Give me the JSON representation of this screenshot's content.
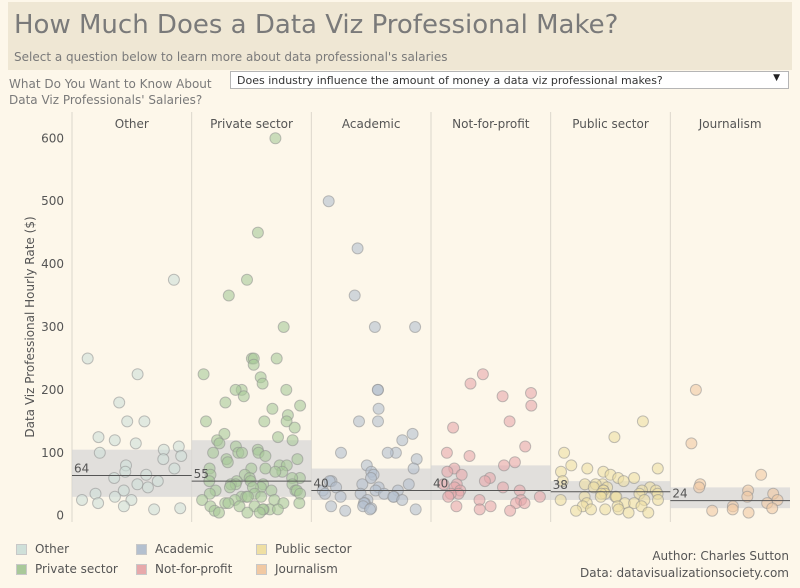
{
  "header": {
    "title": "How Much Does a Data Viz Professional Make?",
    "subtitle": "Select a question below to learn more about data professional's salaries"
  },
  "filter": {
    "label": "What Do You Want to Know About Data Viz Professionals' Salaries?",
    "selected": "Does industry influence the amount of money a data viz professional makes?"
  },
  "chart_data": {
    "type": "scatter",
    "title": "Does industry influence the amount of money a data viz professional makes?",
    "ylabel": "Data Viz Professional Hourly Rate ($)",
    "ylim": [
      -10,
      610
    ],
    "yticks": [
      0,
      100,
      200,
      300,
      400,
      500,
      600
    ],
    "categories": [
      "Other",
      "Private sector",
      "Academic",
      "Not-for-profit",
      "Public sector",
      "Journalism"
    ],
    "colors": {
      "Other": "#cfe0d9",
      "Private sector": "#a9c99a",
      "Academic": "#b4c0cf",
      "Not-for-profit": "#e7a9ab",
      "Public sector": "#efdfa3",
      "Journalism": "#f1c9a3"
    },
    "medians": {
      "Other": 64,
      "Private sector": 55,
      "Academic": 40,
      "Not-for-profit": 40,
      "Public sector": 38,
      "Journalism": 24
    },
    "median_labels": {
      "Other": "64",
      "Private sector": "55",
      "Academic": "40",
      "Not-for-profit": "40",
      "Public sector": "38",
      "Journalism": "24"
    },
    "iqr": {
      "Other": [
        30,
        105
      ],
      "Private sector": [
        30,
        120
      ],
      "Academic": [
        25,
        75
      ],
      "Not-for-profit": [
        25,
        80
      ],
      "Public sector": [
        25,
        55
      ],
      "Journalism": [
        12,
        45
      ]
    },
    "series": [
      {
        "name": "Other",
        "values": [
          375,
          250,
          225,
          180,
          150,
          150,
          125,
          120,
          115,
          110,
          105,
          100,
          95,
          90,
          80,
          75,
          70,
          65,
          60,
          55,
          50,
          45,
          40,
          35,
          30,
          25,
          25,
          20,
          15,
          12,
          10
        ]
      },
      {
        "name": "Private sector",
        "values": [
          600,
          450,
          375,
          350,
          300,
          250,
          250,
          250,
          240,
          225,
          220,
          210,
          200,
          200,
          200,
          190,
          180,
          175,
          170,
          160,
          150,
          150,
          150,
          140,
          130,
          125,
          120,
          120,
          115,
          110,
          105,
          100,
          100,
          100,
          100,
          95,
          90,
          90,
          85,
          80,
          80,
          75,
          75,
          75,
          70,
          70,
          65,
          65,
          60,
          60,
          60,
          55,
          55,
          55,
          50,
          50,
          50,
          50,
          45,
          45,
          45,
          40,
          40,
          40,
          40,
          35,
          35,
          35,
          30,
          30,
          30,
          30,
          25,
          25,
          25,
          20,
          20,
          20,
          20,
          15,
          15,
          15,
          10,
          10,
          10,
          10,
          8,
          5,
          5,
          5
        ]
      },
      {
        "name": "Academic",
        "values": [
          500,
          425,
          350,
          300,
          300,
          200,
          200,
          170,
          150,
          150,
          130,
          120,
          100,
          100,
          100,
          90,
          80,
          75,
          70,
          65,
          60,
          55,
          55,
          50,
          50,
          45,
          45,
          40,
          40,
          40,
          35,
          35,
          35,
          30,
          30,
          30,
          25,
          25,
          20,
          20,
          15,
          15,
          12,
          10,
          10,
          8
        ]
      },
      {
        "name": "Not-for-profit",
        "values": [
          225,
          210,
          195,
          190,
          175,
          150,
          140,
          110,
          100,
          95,
          85,
          80,
          75,
          70,
          65,
          60,
          55,
          50,
          50,
          45,
          45,
          40,
          40,
          35,
          35,
          30,
          30,
          25,
          25,
          20,
          20,
          15,
          15,
          10,
          8
        ]
      },
      {
        "name": "Public sector",
        "values": [
          150,
          125,
          100,
          80,
          75,
          75,
          70,
          70,
          65,
          60,
          60,
          55,
          55,
          50,
          50,
          50,
          45,
          45,
          45,
          40,
          40,
          40,
          40,
          35,
          35,
          35,
          35,
          30,
          30,
          30,
          30,
          25,
          25,
          25,
          20,
          20,
          20,
          15,
          15,
          15,
          10,
          10,
          10,
          8,
          5,
          5
        ]
      },
      {
        "name": "Journalism",
        "values": [
          200,
          115,
          65,
          50,
          45,
          40,
          35,
          30,
          25,
          20,
          15,
          12,
          10,
          8,
          5
        ]
      }
    ]
  },
  "legend": {
    "items": [
      "Other",
      "Academic",
      "Public sector",
      "Private sector",
      "Not-for-profit",
      "Journalism"
    ]
  },
  "credits": {
    "author": "Author: Charles Sutton",
    "data": "Data: datavisualizationsociety.com"
  }
}
